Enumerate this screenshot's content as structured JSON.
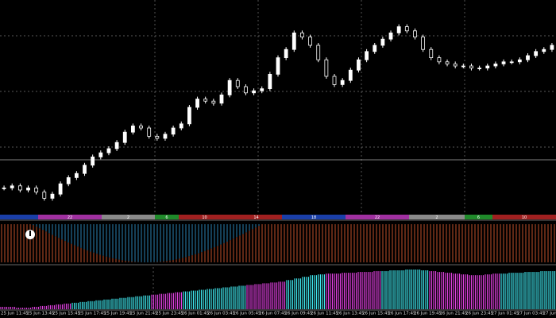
{
  "chart_data": [
    {
      "type": "candlestick",
      "color": "#ffffff",
      "ylim": [
        0,
        100
      ],
      "values": [
        11,
        12,
        10,
        11,
        9,
        6,
        8,
        13,
        16,
        18,
        22,
        26,
        28,
        30,
        33,
        38,
        41,
        40,
        36,
        35,
        37,
        40,
        42,
        50,
        54,
        53,
        52,
        56,
        63,
        60,
        57,
        58,
        59,
        66,
        74,
        78,
        86,
        84,
        80,
        73,
        65,
        61,
        63,
        68,
        73,
        77,
        80,
        83,
        86,
        89,
        87,
        84,
        78,
        74,
        72,
        71,
        70,
        70,
        69,
        69,
        70,
        71,
        72,
        72,
        73,
        75,
        77,
        78,
        80
      ]
    },
    {
      "type": "bar",
      "ylim": [
        0,
        50
      ],
      "series": [
        {
          "color": "#e040e0",
          "values": [
            3,
            3,
            2,
            2,
            3,
            4,
            5,
            6,
            7
          ]
        },
        {
          "color": "#40e8f0",
          "values": [
            8,
            9,
            10,
            11,
            12,
            13,
            14,
            15,
            16,
            17
          ]
        },
        {
          "color": "#e040e0",
          "values": [
            18,
            19,
            20,
            21
          ]
        },
        {
          "color": "#40e8f0",
          "values": [
            22,
            23,
            24,
            25,
            26,
            27,
            28,
            29
          ]
        },
        {
          "color": "#e040e0",
          "values": [
            30,
            31,
            32,
            33,
            34
          ]
        },
        {
          "color": "#40e8f0",
          "values": [
            36,
            38,
            40,
            42,
            43
          ]
        },
        {
          "color": "#e040e0",
          "values": [
            44,
            44,
            45,
            45,
            46,
            46,
            47
          ]
        },
        {
          "color": "#40e8f0",
          "values": [
            47,
            48,
            48,
            49,
            49,
            48
          ]
        },
        {
          "color": "#e040e0",
          "values": [
            47,
            46,
            45,
            44,
            43,
            42,
            42,
            43,
            44
          ]
        },
        {
          "color": "#40e8f0",
          "values": [
            44,
            45,
            45,
            46,
            46,
            47,
            47
          ]
        }
      ]
    }
  ],
  "session_bar": {
    "labels": [
      "22",
      "2",
      "6",
      "10",
      "14",
      "18",
      "22",
      "2",
      "6",
      "10"
    ]
  },
  "time_axis": {
    "labels": [
      "25 Jun 11:45",
      "25 Jun 13:45",
      "25 Jun 15:45",
      "25 Jun 17:45",
      "25 Jun 19:45",
      "25 Jun 21:45",
      "25 Jun 23:45",
      "26 Jun 01:45",
      "26 Jun 03:45",
      "26 Jun 05:45",
      "26 Jun 07:45",
      "26 Jun 09:45",
      "26 Jun 11:45",
      "26 Jun 13:45",
      "26 Jun 15:45",
      "26 Jun 17:45",
      "26 Jun 19:45",
      "26 Jun 21:45",
      "26 Jun 23:45",
      "27 Jun 01:45",
      "27 Jun 03:45",
      "27 Jun 05:45"
    ]
  }
}
